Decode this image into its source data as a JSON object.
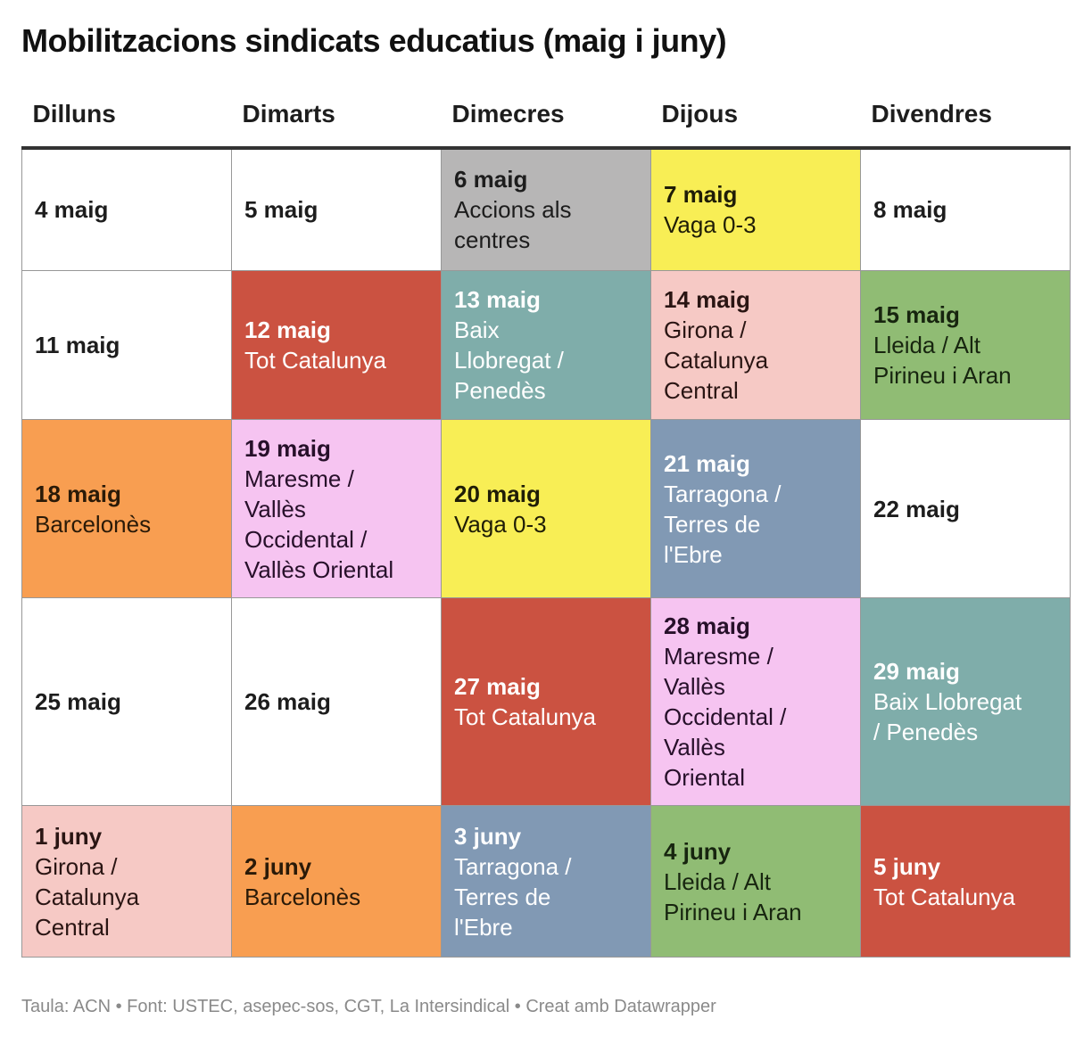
{
  "title": "Mobilitzacions sindicats educatius (maig i juny)",
  "footer": "Taula: ACN • Font: USTEC, asepec-sos, CGT, La Intersindical • Creat amb Datawrapper",
  "palette": {
    "white": {
      "bg": "#ffffff",
      "fg": "#1d1d1d"
    },
    "gray": {
      "bg": "#b7b6b6",
      "fg": "#1d1d1d"
    },
    "yellow": {
      "bg": "#f8ee55",
      "fg": "#1f1d07"
    },
    "red": {
      "bg": "#cb5241",
      "fg": "#ffffff"
    },
    "teal": {
      "bg": "#7fadaa",
      "fg": "#ffffff"
    },
    "pink": {
      "bg": "#f6c9c5",
      "fg": "#2a1513"
    },
    "green": {
      "bg": "#90bc74",
      "fg": "#17250f"
    },
    "orange": {
      "bg": "#f89e51",
      "fg": "#2a1a08"
    },
    "violet": {
      "bg": "#f6c4f1",
      "fg": "#27102a"
    },
    "blue": {
      "bg": "#8199b4",
      "fg": "#ffffff"
    }
  },
  "chart_data": {
    "type": "table",
    "title": "Mobilitzacions sindicats educatius (maig i juny)",
    "headers": [
      "Dilluns",
      "Dimarts",
      "Dimecres",
      "Dijous",
      "Divendres"
    ],
    "rows": [
      [
        {
          "date": "4 maig",
          "event": "",
          "color": "white"
        },
        {
          "date": "5 maig",
          "event": "",
          "color": "white"
        },
        {
          "date": "6 maig",
          "event": "Accions als\ncentres",
          "color": "gray"
        },
        {
          "date": "7 maig",
          "event": "Vaga 0-3",
          "color": "yellow"
        },
        {
          "date": "8 maig",
          "event": "",
          "color": "white"
        }
      ],
      [
        {
          "date": "11 maig",
          "event": "",
          "color": "white"
        },
        {
          "date": "12 maig",
          "event": "Tot Catalunya",
          "color": "red"
        },
        {
          "date": "13 maig",
          "event": "Baix\nLlobregat /\nPenedès",
          "color": "teal"
        },
        {
          "date": "14 maig",
          "event": "Girona /\nCatalunya\nCentral",
          "color": "pink"
        },
        {
          "date": "15 maig",
          "event": "Lleida / Alt\nPirineu i Aran",
          "color": "green"
        }
      ],
      [
        {
          "date": "18 maig",
          "event": "Barcelonès",
          "color": "orange"
        },
        {
          "date": "19 maig",
          "event": "Maresme /\nVallès\nOccidental /\nVallès Oriental",
          "color": "violet"
        },
        {
          "date": "20 maig",
          "event": "Vaga 0-3",
          "color": "yellow"
        },
        {
          "date": "21 maig",
          "event": "Tarragona /\nTerres de\nl'Ebre",
          "color": "blue"
        },
        {
          "date": "22 maig",
          "event": "",
          "color": "white"
        }
      ],
      [
        {
          "date": "25 maig",
          "event": "",
          "color": "white"
        },
        {
          "date": "26 maig",
          "event": "",
          "color": "white"
        },
        {
          "date": "27 maig",
          "event": "Tot Catalunya",
          "color": "red"
        },
        {
          "date": "28 maig",
          "event": "Maresme /\nVallès\nOccidental /\nVallès\nOriental",
          "color": "violet"
        },
        {
          "date": "29 maig",
          "event": "Baix Llobregat\n/ Penedès",
          "color": "teal"
        }
      ],
      [
        {
          "date": "1 juny",
          "event": "Girona /\nCatalunya\nCentral",
          "color": "pink"
        },
        {
          "date": "2 juny",
          "event": "Barcelonès",
          "color": "orange"
        },
        {
          "date": "3 juny",
          "event": "Tarragona /\nTerres de\nl'Ebre",
          "color": "blue"
        },
        {
          "date": "4 juny",
          "event": "Lleida / Alt\nPirineu i Aran",
          "color": "green"
        },
        {
          "date": "5 juny",
          "event": "Tot Catalunya",
          "color": "red"
        }
      ]
    ]
  }
}
